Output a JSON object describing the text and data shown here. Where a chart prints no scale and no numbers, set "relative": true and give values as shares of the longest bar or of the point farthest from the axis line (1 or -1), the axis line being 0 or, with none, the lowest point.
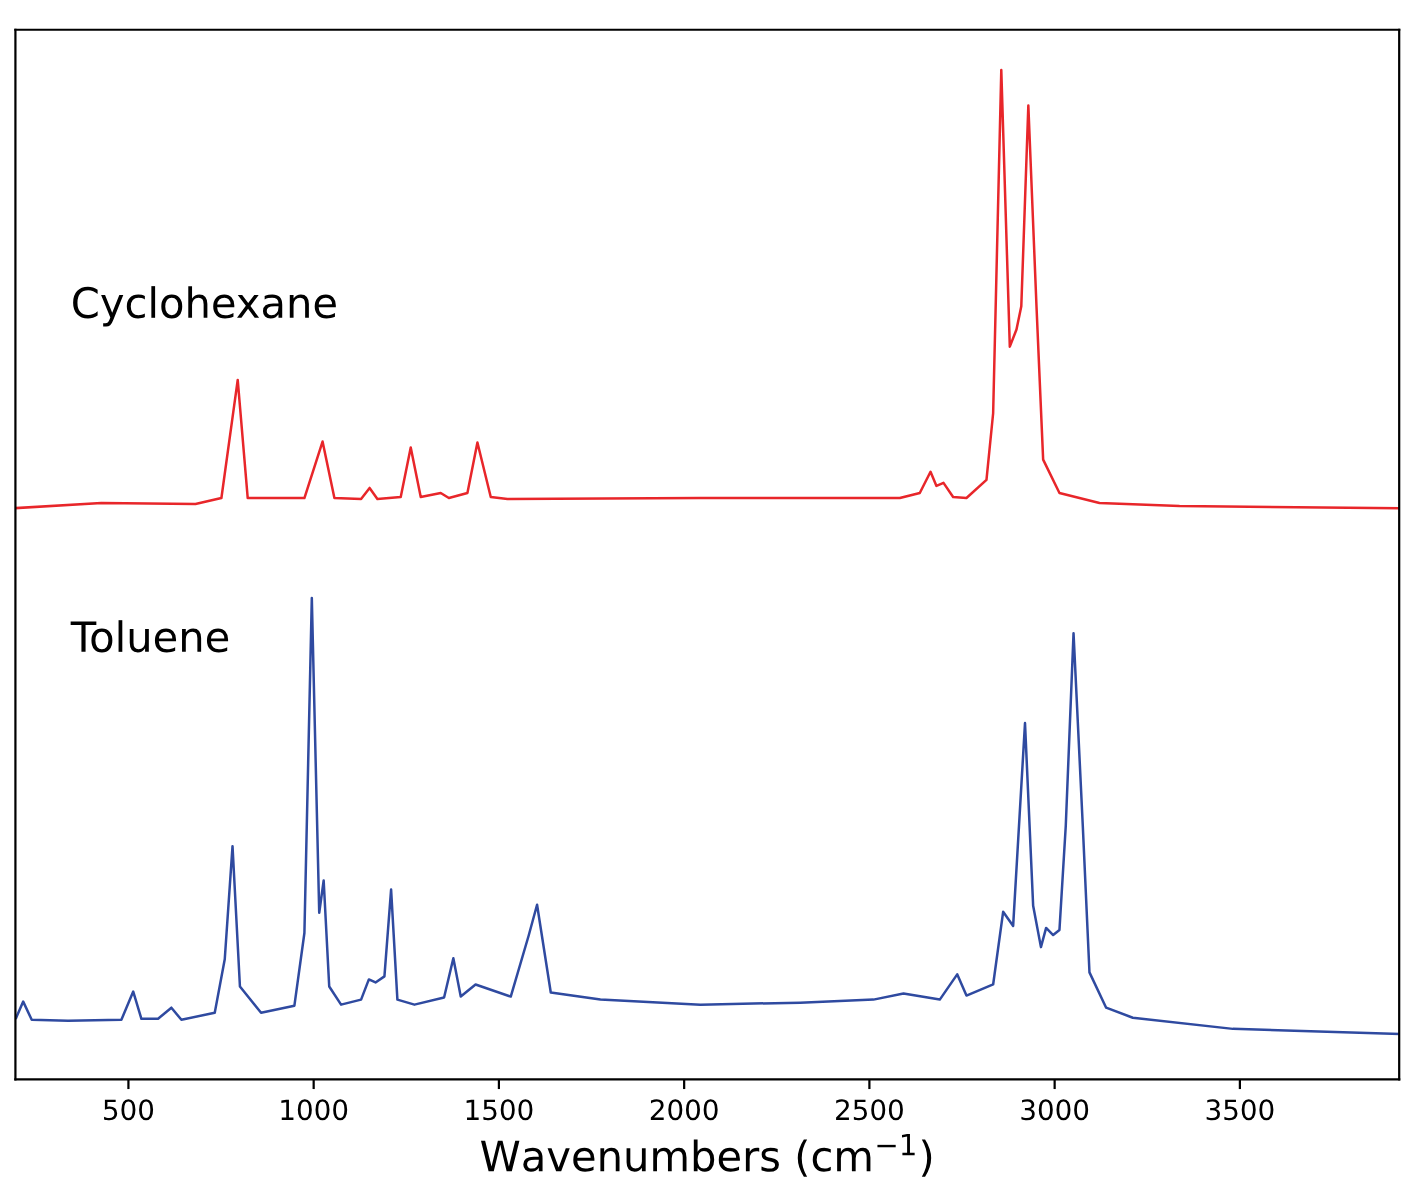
{
  "chart_data": {
    "type": "line",
    "relative": true,
    "xlabel": "Wavenumbers (cm$^{−1}$)",
    "xlim": [
      195,
      3930
    ],
    "xticks": [
      500,
      1000,
      1500,
      2000,
      2500,
      3000,
      3500
    ],
    "grid": false,
    "legend": false,
    "marker": "none",
    "line_style": "solid",
    "tick_labels": "x",
    "series": [
      {
        "name": "Cyclohexane",
        "color": "#e8262a",
        "x": [
          196,
          427,
          681,
          751,
          795,
          822,
          975,
          1024,
          1056,
          1128,
          1151,
          1172,
          1235,
          1262,
          1289,
          1343,
          1365,
          1415,
          1442,
          1478,
          1523,
          2044,
          2582,
          2636,
          2665,
          2681,
          2700,
          2726,
          2762,
          2816,
          2834,
          2856,
          2879,
          2897,
          2910,
          2929,
          2951,
          2969,
          3013,
          3121,
          3337,
          3929
        ],
        "values": [
          0.566,
          0.571,
          0.57,
          0.576,
          0.693,
          0.576,
          0.576,
          0.632,
          0.576,
          0.575,
          0.586,
          0.575,
          0.577,
          0.626,
          0.577,
          0.581,
          0.576,
          0.581,
          0.631,
          0.577,
          0.575,
          0.576,
          0.576,
          0.581,
          0.602,
          0.588,
          0.591,
          0.577,
          0.576,
          0.594,
          0.66,
          1.0,
          0.726,
          0.743,
          0.766,
          0.965,
          0.766,
          0.614,
          0.581,
          0.571,
          0.568,
          0.566
        ]
      },
      {
        "name": "Toluene",
        "color": "#2f4aa0",
        "x": [
          197,
          216,
          239,
          337,
          481,
          513,
          535,
          580,
          616,
          643,
          733,
          760,
          781,
          801,
          858,
          948,
          975,
          995,
          1015,
          1027,
          1042,
          1074,
          1128,
          1149,
          1167,
          1191,
          1209,
          1226,
          1272,
          1352,
          1377,
          1397,
          1437,
          1532,
          1580,
          1603,
          1640,
          1774,
          2044,
          2313,
          2511,
          2592,
          2690,
          2737,
          2762,
          2834,
          2861,
          2888,
          2920,
          2942,
          2963,
          2977,
          2996,
          3013,
          3030,
          3051,
          3076,
          3094,
          3139,
          3211,
          3481,
          3929
        ],
        "values": [
          0.061,
          0.077,
          0.059,
          0.058,
          0.059,
          0.087,
          0.06,
          0.06,
          0.071,
          0.059,
          0.066,
          0.119,
          0.231,
          0.092,
          0.066,
          0.073,
          0.145,
          0.477,
          0.165,
          0.197,
          0.092,
          0.074,
          0.079,
          0.099,
          0.096,
          0.102,
          0.188,
          0.079,
          0.074,
          0.081,
          0.12,
          0.082,
          0.094,
          0.082,
          0.142,
          0.173,
          0.086,
          0.079,
          0.074,
          0.076,
          0.079,
          0.085,
          0.079,
          0.104,
          0.083,
          0.094,
          0.166,
          0.152,
          0.353,
          0.172,
          0.131,
          0.15,
          0.143,
          0.148,
          0.251,
          0.442,
          0.251,
          0.106,
          0.071,
          0.061,
          0.05,
          0.045
        ]
      }
    ]
  }
}
